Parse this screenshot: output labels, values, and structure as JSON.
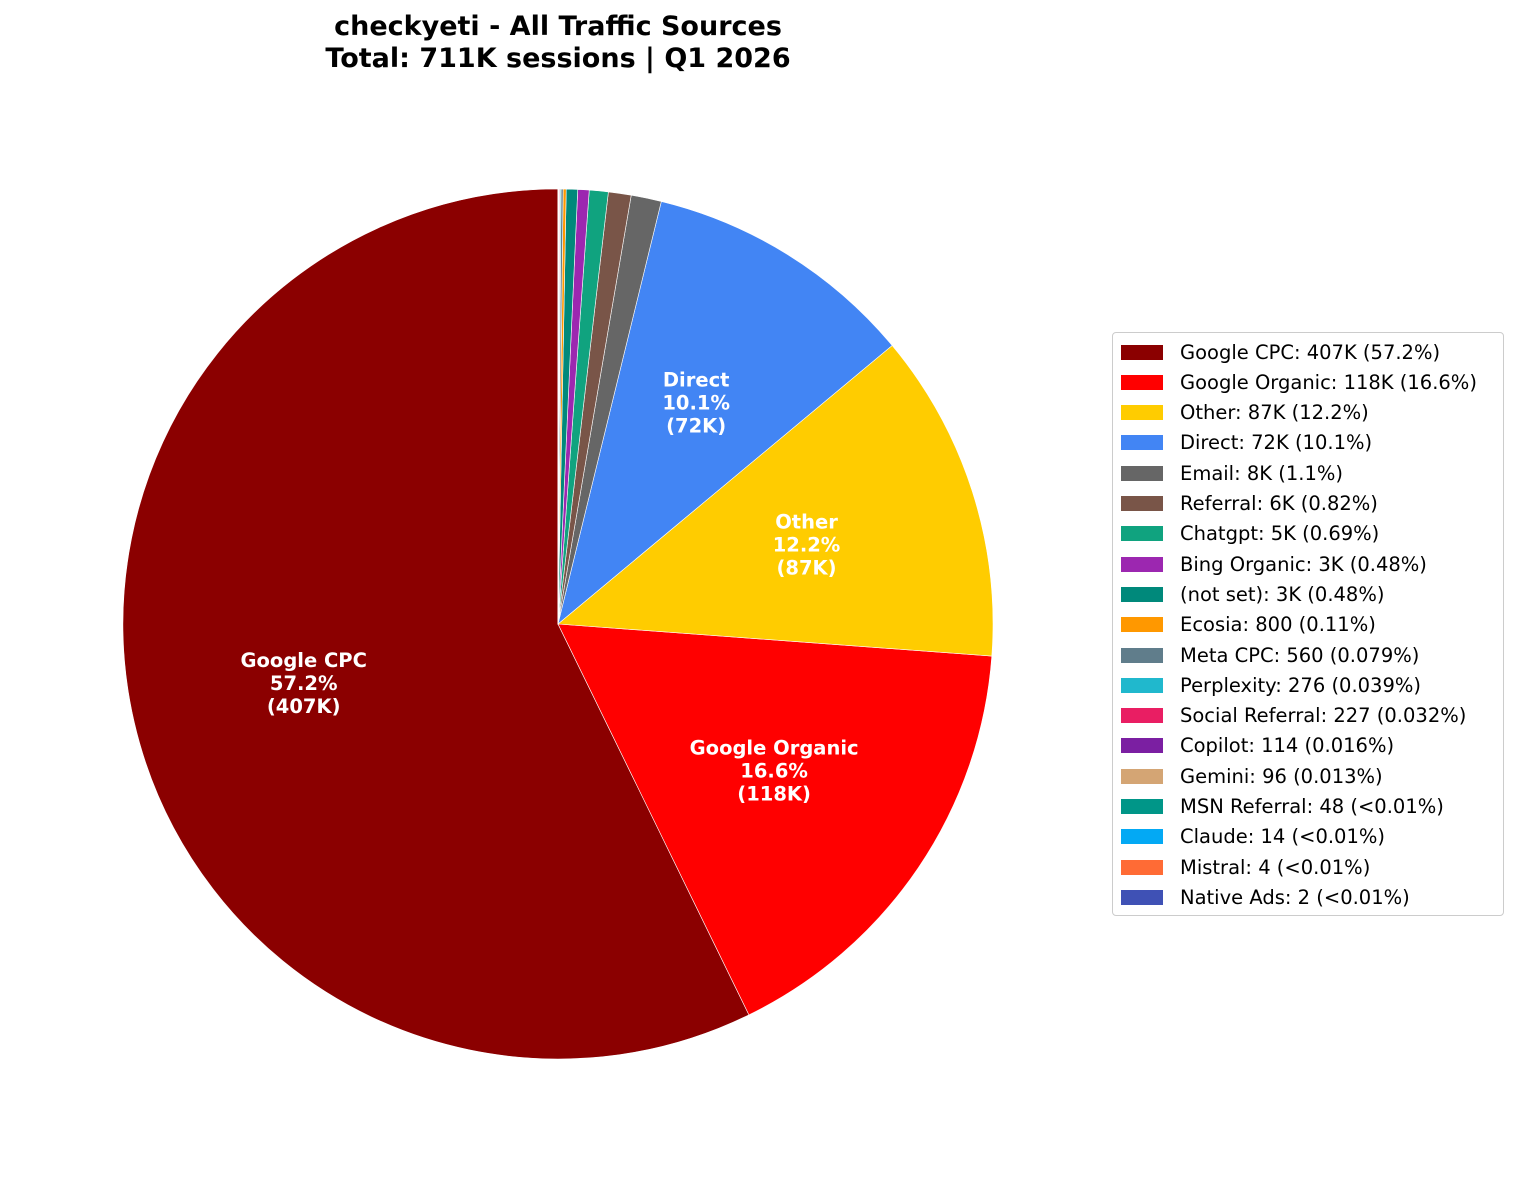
{
  "title_line1": "checkyeti - All Traffic Sources",
  "title_line2": "Total: 711K sessions | Q1 2026",
  "chart_data": {
    "type": "pie",
    "title": "checkyeti - All Traffic Sources\nTotal: 711K sessions | Q1 2026",
    "start_angle": 90,
    "direction": "counterclockwise",
    "legend_position": "right",
    "total_sessions": "711K",
    "slices": [
      {
        "label": "Google CPC",
        "value": 407000,
        "value_text": "407K",
        "percent": 57.2,
        "percent_text": "57.2%",
        "color": "#8B0000",
        "legend": "Google CPC: 407K (57.2%)",
        "show_label": true
      },
      {
        "label": "Google Organic",
        "value": 118000,
        "value_text": "118K",
        "percent": 16.6,
        "percent_text": "16.6%",
        "color": "#FF0000",
        "legend": "Google Organic: 118K (16.6%)",
        "show_label": true
      },
      {
        "label": "Other",
        "value": 87000,
        "value_text": "87K",
        "percent": 12.2,
        "percent_text": "12.2%",
        "color": "#FFCC00",
        "legend": "Other: 87K (12.2%)",
        "show_label": true
      },
      {
        "label": "Direct",
        "value": 72000,
        "value_text": "72K",
        "percent": 10.1,
        "percent_text": "10.1%",
        "color": "#4285F4",
        "legend": "Direct: 72K (10.1%)",
        "show_label": true
      },
      {
        "label": "Email",
        "value": 8000,
        "value_text": "8K",
        "percent": 1.1,
        "color": "#666666",
        "legend": "Email: 8K (1.1%)"
      },
      {
        "label": "Referral",
        "value": 6000,
        "value_text": "6K",
        "percent": 0.82,
        "color": "#795548",
        "legend": "Referral: 6K (0.82%)"
      },
      {
        "label": "Chatgpt",
        "value": 5000,
        "value_text": "5K",
        "percent": 0.69,
        "color": "#10A37F",
        "legend": "Chatgpt: 5K (0.69%)"
      },
      {
        "label": "Bing Organic",
        "value": 3000,
        "value_text": "3K",
        "percent": 0.48,
        "color": "#9C27B0",
        "legend": "Bing Organic: 3K (0.48%)"
      },
      {
        "label": "(not set)",
        "value": 3000,
        "value_text": "3K",
        "percent": 0.48,
        "color": "#00897B",
        "legend": "(not set): 3K (0.48%)"
      },
      {
        "label": "Ecosia",
        "value": 800,
        "value_text": "800",
        "percent": 0.11,
        "color": "#FF9800",
        "legend": "Ecosia: 800 (0.11%)"
      },
      {
        "label": "Meta CPC",
        "value": 560,
        "value_text": "560",
        "percent": 0.079,
        "color": "#607D8B",
        "legend": "Meta CPC: 560 (0.079%)"
      },
      {
        "label": "Perplexity",
        "value": 276,
        "value_text": "276",
        "percent": 0.039,
        "color": "#20B8CD",
        "legend": "Perplexity: 276 (0.039%)"
      },
      {
        "label": "Social Referral",
        "value": 227,
        "value_text": "227",
        "percent": 0.032,
        "color": "#E91E63",
        "legend": "Social Referral: 227 (0.032%)"
      },
      {
        "label": "Copilot",
        "value": 114,
        "value_text": "114",
        "percent": 0.016,
        "color": "#7B1FA2",
        "legend": "Copilot: 114 (0.016%)"
      },
      {
        "label": "Gemini",
        "value": 96,
        "value_text": "96",
        "percent": 0.013,
        "color": "#D4A574",
        "legend": "Gemini: 96 (0.013%)"
      },
      {
        "label": "MSN Referral",
        "value": 48,
        "value_text": "48",
        "percent": 0.0068,
        "color": "#009688",
        "legend": "MSN Referral: 48 (<0.01%)"
      },
      {
        "label": "Claude",
        "value": 14,
        "value_text": "14",
        "percent": 0.002,
        "color": "#03A9F4",
        "legend": "Claude: 14 (<0.01%)"
      },
      {
        "label": "Mistral",
        "value": 4,
        "value_text": "4",
        "percent": 0.0006,
        "color": "#FF6B35",
        "legend": "Mistral: 4 (<0.01%)"
      },
      {
        "label": "Native Ads",
        "value": 2,
        "value_text": "2",
        "percent": 0.0003,
        "color": "#3F51B5",
        "legend": "Native Ads: 2 (<0.01%)"
      }
    ]
  }
}
